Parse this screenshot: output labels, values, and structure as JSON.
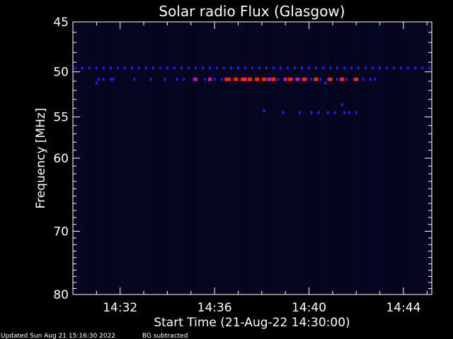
{
  "chart_data": {
    "type": "heatmap",
    "title": "Solar radio Flux (Glasgow)",
    "xlabel": "Start Time (21-Aug-22 14:30:00)",
    "ylabel": "Frequency [MHz]",
    "x_range_minutes": [
      0,
      15.2
    ],
    "y_range_mhz": [
      45,
      80
    ],
    "y_ticks": [
      {
        "value": 45,
        "label": "45"
      },
      {
        "value": 50,
        "label": "50"
      },
      {
        "value": 55,
        "label": "55"
      },
      {
        "value": 60,
        "label": "60"
      },
      {
        "value": 70,
        "label": "70"
      },
      {
        "value": 80,
        "label": "80"
      }
    ],
    "x_ticks": [
      {
        "value": 2,
        "label": "14:32"
      },
      {
        "value": 6,
        "label": "14:36"
      },
      {
        "value": 10,
        "label": "14:40"
      },
      {
        "value": 14,
        "label": "14:44"
      }
    ],
    "background_color": "#000000",
    "plot_background_color": "#04041c",
    "colors": {
      "weak": "#2020ff",
      "medium": "#c02090",
      "strong": "#ff2a00"
    },
    "bands": [
      {
        "name": "",
        "frequency_mhz": 49.6,
        "intensity": "weak",
        "times": [
          0.1,
          0.4,
          0.7,
          1.0,
          1.3,
          1.6,
          1.9,
          2.2,
          2.5,
          2.8,
          3.1,
          3.4,
          3.7,
          4.0,
          4.3,
          4.6,
          4.9,
          5.2,
          5.5,
          5.8,
          6.1,
          6.4,
          6.7,
          7.0,
          7.3,
          7.6,
          7.9,
          8.2,
          8.5,
          8.8,
          9.1,
          9.4,
          9.7,
          10.0,
          10.3,
          10.6,
          10.9,
          11.2,
          11.5,
          11.8,
          12.1,
          12.4,
          12.7,
          13.0,
          13.3,
          13.6,
          13.9,
          14.2,
          14.5,
          14.8,
          15.1
        ]
      },
      {
        "name": "",
        "frequency_mhz": 50.8,
        "intensity": "weak",
        "times": [
          1.1,
          1.3,
          1.6,
          1.7,
          2.6,
          3.3,
          3.9,
          4.4,
          4.7,
          5.1,
          5.6,
          6.0,
          6.3,
          6.6,
          6.9,
          7.2,
          7.5,
          7.8,
          8.1,
          8.4,
          8.7,
          9.0,
          9.3,
          9.6,
          9.9,
          10.1,
          10.5,
          10.8,
          11.2,
          11.6,
          11.9,
          12.3,
          12.6,
          12.8
        ]
      },
      {
        "name": "",
        "frequency_mhz": 50.8,
        "intensity": "medium",
        "times": [
          5.2,
          5.8,
          6.5,
          7.3,
          7.8,
          8.3,
          9.0,
          9.5
        ]
      },
      {
        "name": "",
        "frequency_mhz": 50.8,
        "intensity": "strong",
        "times": [
          6.6,
          6.9,
          7.2,
          7.5,
          7.8,
          8.1,
          8.5,
          9.2,
          9.8,
          10.3,
          10.9,
          11.4,
          12.0
        ]
      },
      {
        "name": "",
        "frequency_mhz": 54.5,
        "intensity": "weak",
        "times": [
          8.9,
          9.6,
          10.1,
          10.4,
          10.8,
          11.1,
          11.5,
          11.7,
          12.0
        ]
      },
      {
        "name": "",
        "frequency_mhz": 53.6,
        "intensity": "weak",
        "times": [
          11.4
        ]
      },
      {
        "name": "",
        "frequency_mhz": 51.2,
        "intensity": "weak",
        "times": [
          1.0,
          10.7
        ]
      },
      {
        "name": "",
        "frequency_mhz": 54.3,
        "intensity": "weak",
        "times": [
          8.1
        ]
      }
    ]
  },
  "footer": {
    "updated": "Updated Sun Aug 21 15:16:30 2022",
    "note": "BG subtracted"
  }
}
